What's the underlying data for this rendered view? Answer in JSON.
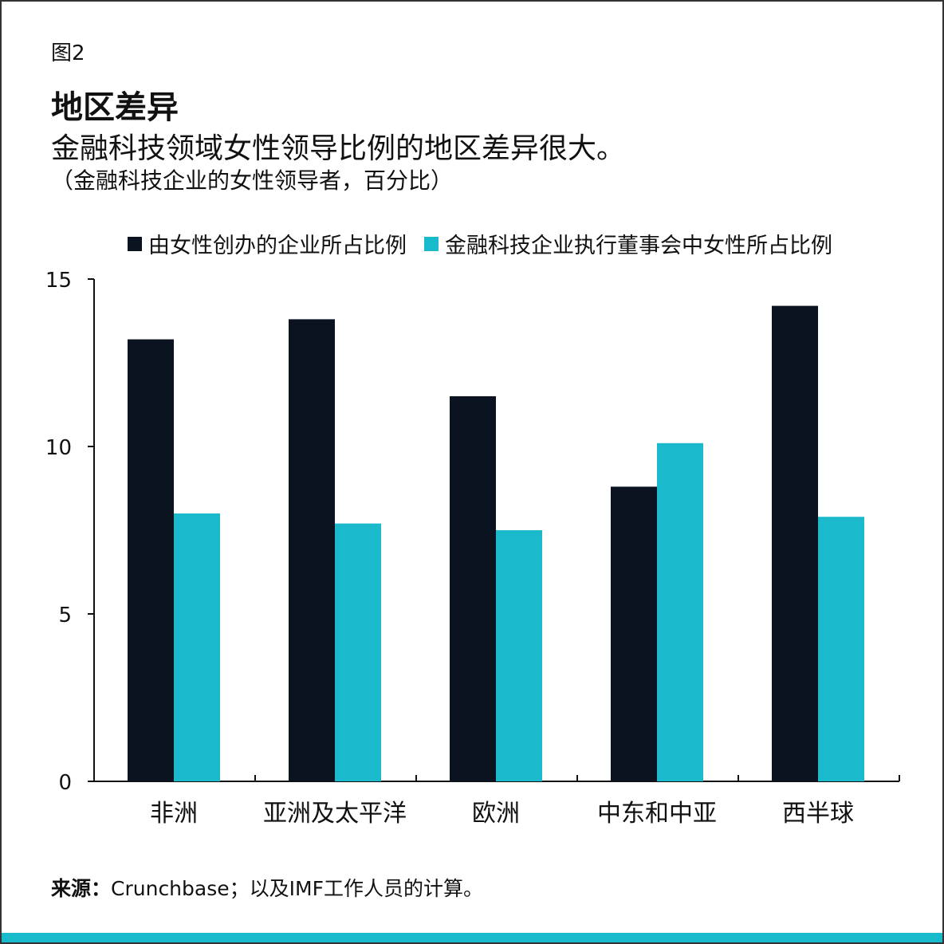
{
  "figure_label": "图2",
  "title": "地区差异",
  "subtitle": "金融科技领域女性领导比例的地区差异很大。",
  "unit_note": "（金融科技企业的女性领导者，百分比）",
  "source_label": "来源：",
  "source_text": "Crunchbase；以及IMF工作人员的计算。",
  "colors": {
    "dark": "#0b1320",
    "teal": "#1ab9cb"
  },
  "chart_data": {
    "type": "bar",
    "categories": [
      "非洲",
      "亚洲及太平洋",
      "欧洲",
      "中东和中亚",
      "西半球"
    ],
    "series": [
      {
        "name": "由女性创办的企业所占比例",
        "color": "#0b1320",
        "values": [
          13.2,
          13.8,
          11.5,
          8.8,
          14.2
        ]
      },
      {
        "name": "金融科技企业执行董事会中女性所占比例",
        "color": "#1ab9cb",
        "values": [
          8.0,
          7.7,
          7.5,
          10.1,
          7.9
        ]
      }
    ],
    "ylim": [
      0,
      15
    ],
    "yticks": [
      "0",
      "5",
      "10",
      "15"
    ],
    "grid": false,
    "legend_position": "top"
  }
}
